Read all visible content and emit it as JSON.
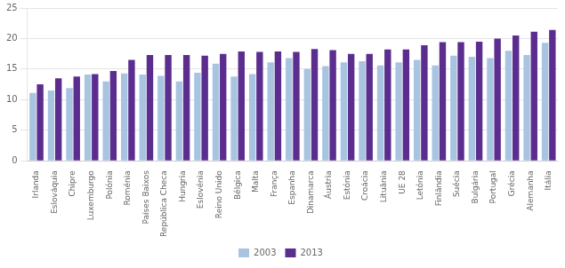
{
  "chart_data": {
    "type": "bar",
    "categories": [
      "Irlanda",
      "Eslováquia",
      "Chipre",
      "Luxemburgo",
      "Polónia",
      "Roménia",
      "Países Baixos",
      "República Checa",
      "Hungria",
      "Eslovénia",
      "Reino Unido",
      "Bélgica",
      "Malta",
      "França",
      "Espanha",
      "Dinamarca",
      "Áustria",
      "Estónia",
      "Croácia",
      "Lituânia",
      "UE 28",
      "Letónia",
      "Finlândia",
      "Suécia",
      "Bulgária",
      "Portugal",
      "Grécia",
      "Alemanha",
      "Itália"
    ],
    "series": [
      {
        "name": "2003",
        "color": "#a8c4e0",
        "values": [
          11.1,
          11.5,
          11.9,
          14.1,
          13.0,
          14.3,
          14.1,
          13.9,
          13.0,
          14.4,
          15.9,
          13.8,
          14.2,
          16.1,
          16.8,
          15.0,
          15.5,
          16.1,
          16.3,
          15.6,
          16.1,
          16.5,
          15.6,
          17.2,
          17.0,
          16.8,
          18.0,
          17.3,
          19.3
        ]
      },
      {
        "name": "2013",
        "color": "#5b2d8e",
        "values": [
          12.5,
          13.5,
          13.8,
          14.2,
          14.7,
          16.5,
          17.3,
          17.3,
          17.3,
          17.2,
          17.5,
          17.9,
          17.8,
          17.9,
          17.8,
          18.3,
          18.1,
          17.5,
          17.5,
          18.2,
          18.2,
          18.9,
          19.4,
          19.4,
          19.5,
          20.0,
          20.5,
          21.1,
          21.4
        ]
      }
    ],
    "ylim": [
      0,
      25
    ],
    "yticks": [
      0,
      5,
      10,
      15,
      20,
      25
    ],
    "grid": true,
    "legend": "bottom"
  }
}
